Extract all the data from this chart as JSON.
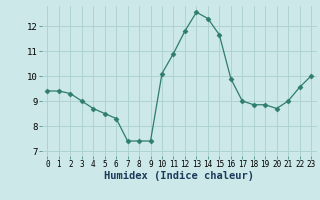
{
  "x": [
    0,
    1,
    2,
    3,
    4,
    5,
    6,
    7,
    8,
    9,
    10,
    11,
    12,
    13,
    14,
    15,
    16,
    17,
    18,
    19,
    20,
    21,
    22,
    23
  ],
  "y": [
    9.4,
    9.4,
    9.3,
    9.0,
    8.7,
    8.5,
    8.3,
    7.4,
    7.4,
    7.4,
    10.1,
    10.9,
    11.8,
    12.55,
    12.3,
    11.65,
    9.9,
    9.0,
    8.85,
    8.85,
    8.7,
    9.0,
    9.55,
    10.0
  ],
  "xlabel": "Humidex (Indice chaleur)",
  "ylim": [
    6.8,
    12.8
  ],
  "xlim": [
    -0.5,
    23.5
  ],
  "yticks": [
    7,
    8,
    9,
    10,
    11,
    12
  ],
  "xticks": [
    0,
    1,
    2,
    3,
    4,
    5,
    6,
    7,
    8,
    9,
    10,
    11,
    12,
    13,
    14,
    15,
    16,
    17,
    18,
    19,
    20,
    21,
    22,
    23
  ],
  "line_color": "#2e7d6e",
  "marker": "D",
  "marker_size": 2.5,
  "bg_color": "#cce8e8",
  "grid_color": "#aad0d0",
  "xlabel_color": "#1a3a5c",
  "xlabel_fontsize": 7.5,
  "tick_fontsize": 5.5,
  "ytick_fontsize": 6.5
}
